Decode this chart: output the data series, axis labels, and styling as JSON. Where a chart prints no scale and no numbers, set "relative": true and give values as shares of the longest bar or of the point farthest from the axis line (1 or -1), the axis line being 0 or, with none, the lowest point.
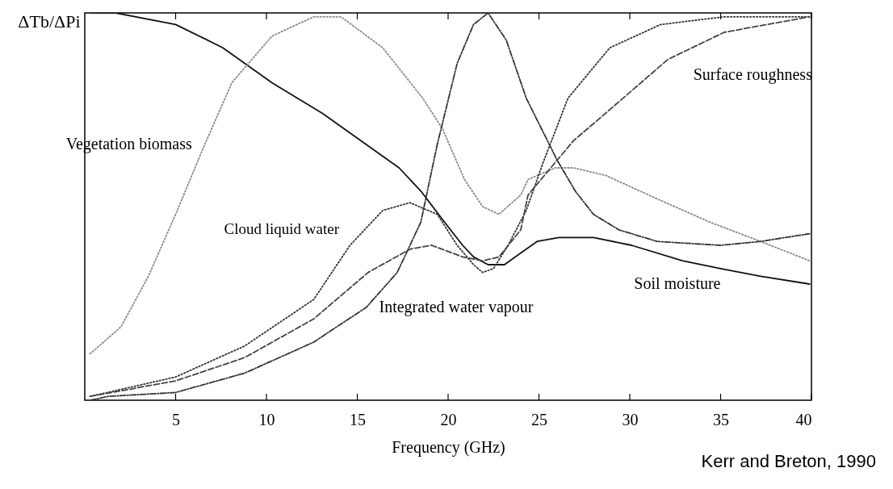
{
  "chart_data": {
    "type": "line",
    "relative": true,
    "ylabel": "ΔTb/ΔPi",
    "xlabel": "Frequency (GHz)",
    "xlim": [
      0,
      40
    ],
    "xticks": [
      5,
      10,
      15,
      20,
      25,
      30,
      35,
      40
    ],
    "grid": false,
    "legend": false,
    "marker": "none",
    "annotations": [
      "Kerr and Breton, 1990"
    ],
    "series": [
      {
        "name": "Soil moisture",
        "color": "#111111",
        "line_style": "solid",
        "x": [
          0.3,
          1.7,
          5.0,
          7.6,
          10.3,
          13.1,
          15.8,
          17.3,
          18.5,
          19.8,
          20.8,
          21.4,
          22.2,
          23.1,
          24.0,
          24.9,
          26.1,
          28.0,
          30.1,
          32.9,
          35.0,
          37.2,
          39.9
        ],
        "values": [
          1.0,
          1.0,
          0.97,
          0.91,
          0.82,
          0.74,
          0.65,
          0.6,
          0.54,
          0.46,
          0.4,
          0.37,
          0.35,
          0.35,
          0.38,
          0.41,
          0.42,
          0.42,
          0.4,
          0.36,
          0.34,
          0.32,
          0.3
        ]
      },
      {
        "name": "Vegetation biomass",
        "color": "#8a8a8a",
        "line_style": "dotted",
        "x": [
          0.3,
          2.0,
          3.5,
          5.0,
          6.6,
          8.1,
          10.3,
          12.6,
          14.1,
          16.4,
          18.6,
          19.7,
          20.9,
          21.9,
          22.8,
          24.0,
          24.4,
          25.9,
          26.9,
          28.7,
          31.5,
          34.4,
          37.2,
          39.9
        ],
        "values": [
          0.12,
          0.19,
          0.32,
          0.48,
          0.66,
          0.82,
          0.94,
          0.99,
          0.99,
          0.91,
          0.78,
          0.7,
          0.57,
          0.5,
          0.48,
          0.53,
          0.57,
          0.6,
          0.6,
          0.58,
          0.52,
          0.46,
          0.41,
          0.36
        ]
      },
      {
        "name": "Cloud liquid water",
        "color": "#333333",
        "line_style": "dotted",
        "x": [
          0.3,
          5.0,
          8.8,
          12.6,
          14.6,
          16.4,
          17.9,
          19.4,
          20.5,
          21.4,
          21.9,
          22.5,
          23.3,
          24.3,
          25.2,
          26.6,
          28.9,
          31.7,
          35.2,
          39.9
        ],
        "values": [
          0.01,
          0.06,
          0.14,
          0.26,
          0.4,
          0.49,
          0.51,
          0.48,
          0.4,
          0.35,
          0.33,
          0.34,
          0.4,
          0.49,
          0.61,
          0.78,
          0.91,
          0.97,
          0.99,
          0.99
        ]
      },
      {
        "name": "Integrated water vapour",
        "color": "#333333",
        "line_style": "dashdot",
        "x": [
          0.3,
          1.3,
          5.0,
          8.8,
          12.6,
          15.5,
          17.2,
          18.5,
          19.4,
          20.5,
          21.4,
          22.2,
          23.2,
          24.3,
          26.0,
          27.0,
          28.0,
          29.4,
          31.5,
          35.0,
          37.2,
          39.9
        ],
        "values": [
          0.0,
          0.01,
          0.02,
          0.07,
          0.15,
          0.24,
          0.33,
          0.46,
          0.66,
          0.87,
          0.97,
          1.0,
          0.93,
          0.78,
          0.62,
          0.54,
          0.48,
          0.44,
          0.41,
          0.4,
          0.41,
          0.43
        ]
      },
      {
        "name": "Surface roughness",
        "color": "#444444",
        "line_style": "dashed",
        "x": [
          0.3,
          5.0,
          8.8,
          12.6,
          15.6,
          17.9,
          19.1,
          20.8,
          21.9,
          22.8,
          24.0,
          24.4,
          26.9,
          28.4,
          32.1,
          35.2,
          39.9
        ],
        "values": [
          0.01,
          0.05,
          0.11,
          0.21,
          0.33,
          0.39,
          0.4,
          0.37,
          0.36,
          0.37,
          0.44,
          0.53,
          0.67,
          0.73,
          0.88,
          0.95,
          0.99
        ]
      }
    ]
  }
}
